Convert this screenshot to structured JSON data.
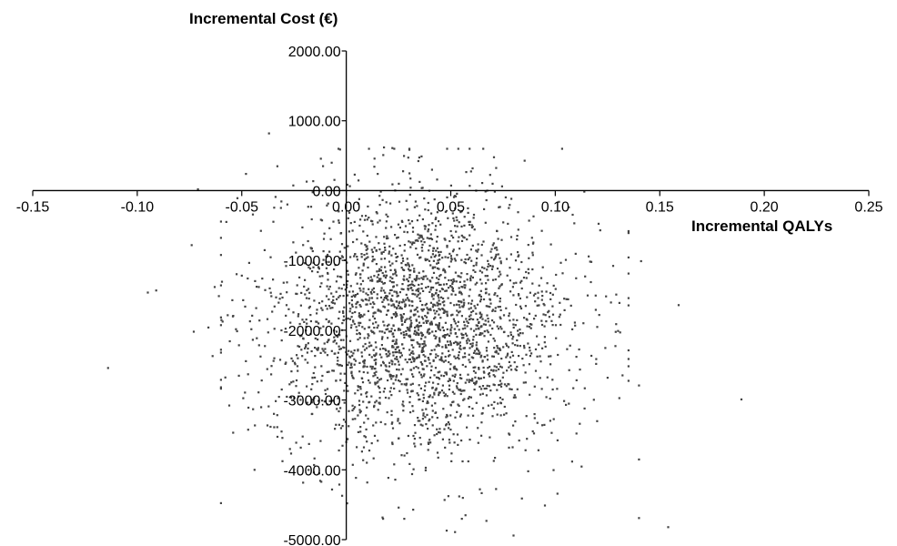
{
  "chart_data": {
    "type": "scatter",
    "title": "",
    "xlabel": "Incremental QALYs",
    "ylabel": "Incremental Cost (€)",
    "xlim": [
      -0.15,
      0.25
    ],
    "ylim": [
      -5000,
      2000
    ],
    "x_ticks": [
      -0.15,
      -0.1,
      -0.05,
      0.0,
      0.05,
      0.1,
      0.15,
      0.2,
      0.25
    ],
    "x_tick_labels": [
      "-0.15",
      "-0.10",
      "-0.05",
      "0.00",
      "0.05",
      "0.10",
      "0.15",
      "0.20",
      "0.25"
    ],
    "y_ticks": [
      2000,
      1000,
      0,
      -1000,
      -2000,
      -3000,
      -4000,
      -5000
    ],
    "y_tick_labels": [
      "2000.00",
      "1000.00",
      "0.00",
      "-1000.00",
      "-2000.00",
      "-3000.00",
      "-4000.00",
      "-5000.00"
    ],
    "grid": false,
    "legend": "none",
    "marker_color": "#444444",
    "series": [
      {
        "cloud": {
          "count": 2600,
          "x_mean": 0.035,
          "x_sd": 0.036,
          "y_mean": -1900,
          "y_sd": 920,
          "correlation": 0.0
        },
        "points": [
          [
            -0.114,
            -2540
          ],
          [
            -0.095,
            -1460
          ],
          [
            -0.091,
            -1430
          ],
          [
            -0.074,
            -780
          ],
          [
            -0.073,
            -2020
          ],
          [
            -0.071,
            20
          ],
          [
            -0.066,
            -1960
          ],
          [
            -0.064,
            -2370
          ],
          [
            -0.063,
            -1380
          ],
          [
            -0.061,
            -1510
          ],
          [
            -0.048,
            240
          ],
          [
            -0.047,
            -2630
          ],
          [
            -0.042,
            -2890
          ],
          [
            -0.037,
            820
          ],
          [
            -0.033,
            350
          ],
          [
            -0.031,
            -3450
          ],
          [
            -0.027,
            -3700
          ],
          [
            -0.024,
            -3610
          ],
          [
            -0.019,
            130
          ],
          [
            -0.013,
            -4050
          ],
          [
            -0.012,
            -4170
          ],
          [
            -0.007,
            400
          ],
          [
            -0.003,
            590
          ],
          [
            -0.002,
            -4370
          ],
          [
            0.004,
            230
          ],
          [
            0.01,
            -4180
          ],
          [
            0.015,
            240
          ],
          [
            0.018,
            620
          ],
          [
            0.022,
            610
          ],
          [
            0.025,
            -4540
          ],
          [
            0.032,
            -4570
          ],
          [
            0.036,
            490
          ],
          [
            0.041,
            300
          ],
          [
            0.047,
            -4430
          ],
          [
            0.048,
            -4870
          ],
          [
            0.052,
            -4890
          ],
          [
            0.054,
            -4380
          ],
          [
            0.057,
            -4650
          ],
          [
            0.059,
            70
          ],
          [
            0.065,
            110
          ],
          [
            0.067,
            -4730
          ],
          [
            0.07,
            100
          ],
          [
            0.08,
            -4940
          ],
          [
            0.084,
            -4410
          ],
          [
            0.087,
            -4020
          ],
          [
            0.095,
            -4510
          ],
          [
            0.101,
            -4340
          ],
          [
            0.108,
            -3880
          ],
          [
            0.114,
            -3120
          ],
          [
            0.117,
            -1310
          ],
          [
            0.121,
            -1780
          ],
          [
            0.125,
            -2680
          ],
          [
            0.131,
            -2030
          ],
          [
            0.135,
            -580
          ],
          [
            0.14,
            -2790
          ],
          [
            0.14,
            -3850
          ],
          [
            0.141,
            -1010
          ],
          [
            0.14,
            -4690
          ],
          [
            0.154,
            -4820
          ],
          [
            0.159,
            -1640
          ],
          [
            0.189,
            -2990
          ]
        ]
      }
    ]
  }
}
